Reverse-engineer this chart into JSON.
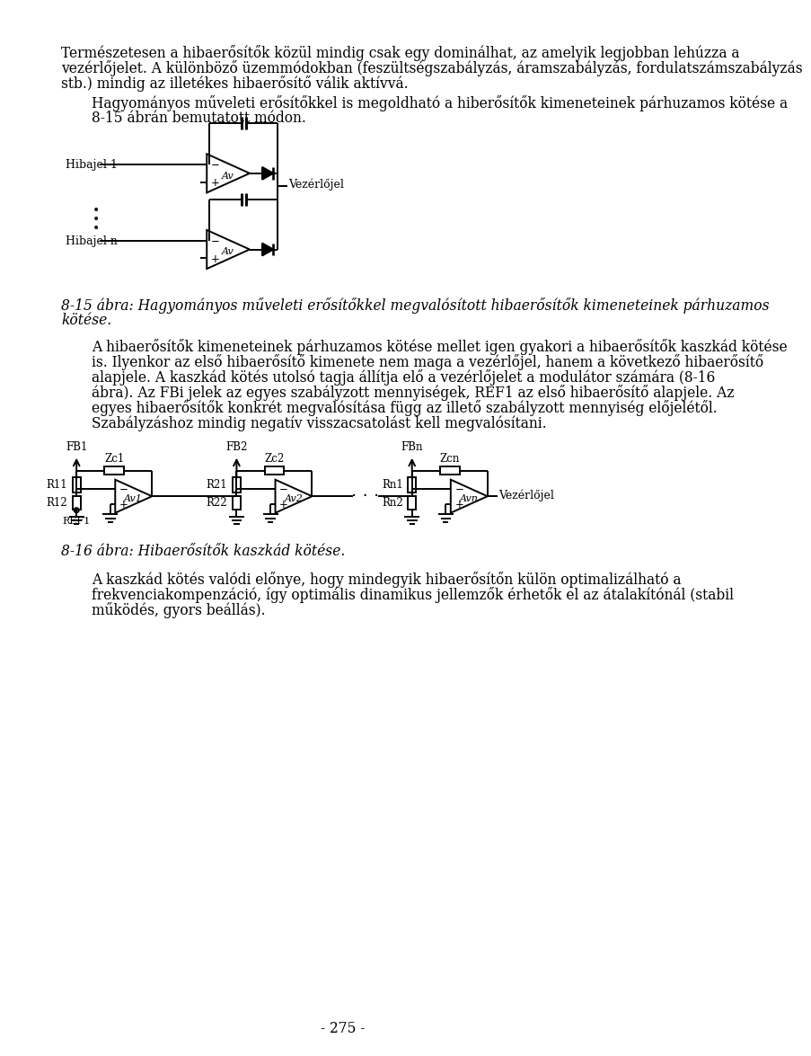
{
  "bg_color": "#ffffff",
  "text_color": "#000000",
  "page_width": 9.6,
  "page_height": 15.01,
  "lm": 0.75,
  "rm": 0.75,
  "fs_body": 11.2,
  "fs_caption": 11.2,
  "fs_page": 11.2,
  "paragraph1": "Természetesen a hibaerősítők közül mindig csak egy dominálhat, az amelyik legjobban lehúzza a vezérlőjelet. A különböző üzemmódokban (feszültségszabályzás, áramszabályzás, fordulatszámszabályzás stb.) mindig az illetékes hibaerősítő válik aktívvá.",
  "paragraph2": "Hagyományos műveleti erősítőkkel is megoldható a hiberősítők kimeneteinek párhuzamos kötése a 8-15 ábrán bemutatott módon.",
  "caption1_part1": "8-15 ábra: ",
  "caption1_part2": "Hagyományos műveleti erősítőkkel megvalósított hibaerősítők kimeneteinek párhuzamos kötése.",
  "paragraph3": "A hibaerősítők kimeneteinek párhuzamos kötése mellet igen gyakori a hibaerősítők kaszkád kötése is. Ilyenkor az első hibaerősítő kimenete nem maga  a vezérlőjel, hanem a következő hibaerősítő alapjele. A kaszkád kötés utolsó tagja állítja elő a vezérlőjelet a modulátor számára (8-16 ábra). Az FBi jelek az egyes szabályzott mennyiségek, REF1 az első hibaerősítő alapjele. Az egyes hibaerősítők konkrét megvalósítása függ az illető szabályzott mennyiség előjelétől. Szabályzáshoz mindig negatív visszacsatolást kell megvalósítani.",
  "caption2_part1": "8-16 ábra: ",
  "caption2_part2": "Hibaerősítők kaszkád kötése.",
  "paragraph4": "A kaszkád kötés valódi előnye, hogy mindegyik hibaerősítőn külön optimalizálható a frekvenciakompenzáció, így optimális dinamikus jellemzők érhetők el az átalakítónál (stabil működés, gyors beállás).",
  "page_number": "- 275 -"
}
